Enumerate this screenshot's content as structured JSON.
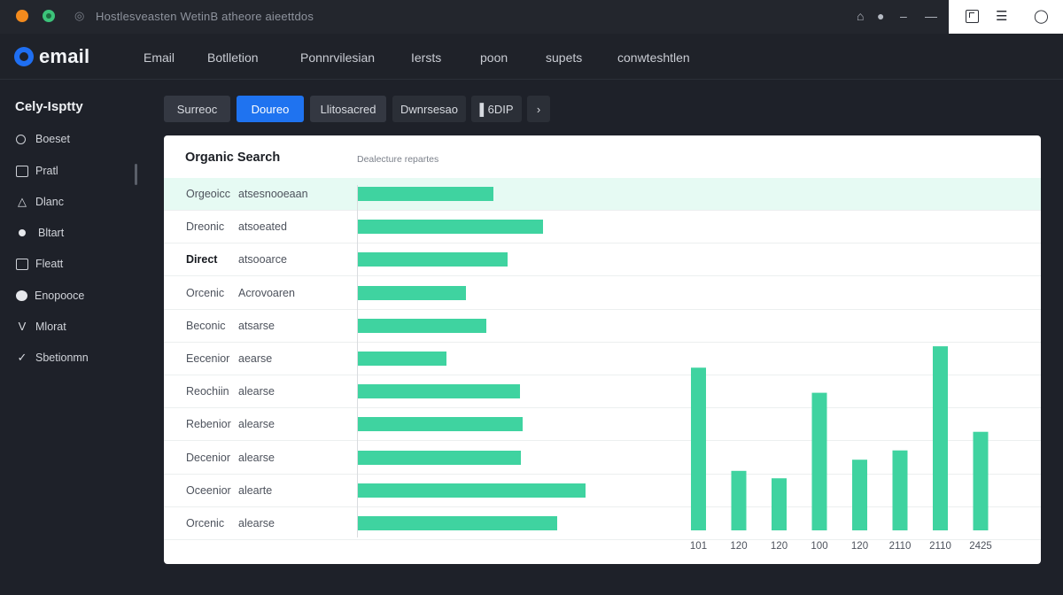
{
  "titlebar": {
    "address": "Hostlesveasten   WetinB  atheore   aieettdos",
    "icons": [
      "home-icon",
      "notification-icon",
      "minus-icon",
      "minimize-icon"
    ],
    "window_icons": [
      "window-icon",
      "menu-icon",
      "lamp-icon"
    ]
  },
  "header": {
    "logo": "email",
    "nav": [
      "Email",
      "Botlletion",
      "Ponnrvilesian",
      "Iersts",
      "poon",
      "supets",
      "conwteshtlen"
    ]
  },
  "sidebar": {
    "title": "Cely-Isptty",
    "items": [
      {
        "label": "Boeset",
        "icon": "circle-icon"
      },
      {
        "label": "Pratl",
        "icon": "square-icon"
      },
      {
        "label": "Dlanc",
        "icon": "drop-icon"
      },
      {
        "label": "Bltart",
        "icon": "dot-icon"
      },
      {
        "label": "Fleatt",
        "icon": "grid-icon"
      },
      {
        "label": "Enopooce",
        "icon": "blob-icon"
      },
      {
        "label": "Mlorat",
        "icon": "v-icon"
      },
      {
        "label": "Sbetionmn",
        "icon": "check-icon"
      }
    ]
  },
  "filters": [
    "Surreoc",
    "Doureo",
    "Llitosacred",
    "Dwnrsesao",
    "▌6DIP",
    "›"
  ],
  "panel": {
    "title": "Organic Search",
    "subtitle": "Dealecture repartes",
    "rows": [
      {
        "label": "Orgeoicc",
        "sub": "atsesnooeaan",
        "value": 0.155
      },
      {
        "label": "Dreonic",
        "sub": "atsoeated",
        "value": 0.211
      },
      {
        "label": "Direct",
        "sub": "atsooarce",
        "value": 0.171
      },
      {
        "label": "Orcenic",
        "sub": "Acrovoaren",
        "value": 0.123
      },
      {
        "label": "Beconic",
        "sub": "atsarse",
        "value": 0.146
      },
      {
        "label": "Eecenior",
        "sub": "aearse",
        "value": 0.101
      },
      {
        "label": "Reochiin",
        "sub": "alearse",
        "value": 0.185
      },
      {
        "label": "Rebenior",
        "sub": "alearse",
        "value": 0.188
      },
      {
        "label": "Decenior",
        "sub": "alearse",
        "value": 0.186
      },
      {
        "label": "Oceenior",
        "sub": "alearte",
        "value": 0.26
      },
      {
        "label": "Orcenic",
        "sub": "alearse",
        "value": 0.227
      }
    ]
  },
  "chart_data": {
    "type": "bar",
    "categories": [
      "101",
      "120",
      "120",
      "100",
      "120",
      "2110",
      "2110",
      "2425"
    ],
    "values": [
      175,
      64,
      56,
      148,
      76,
      86,
      198,
      106
    ],
    "ylim": [
      0,
      200
    ],
    "title": "",
    "xlabel": "",
    "ylabel": ""
  },
  "colors": {
    "accent": "#1f73f0",
    "bar": "#3fd3a0",
    "highlight": "#e6faf3"
  }
}
